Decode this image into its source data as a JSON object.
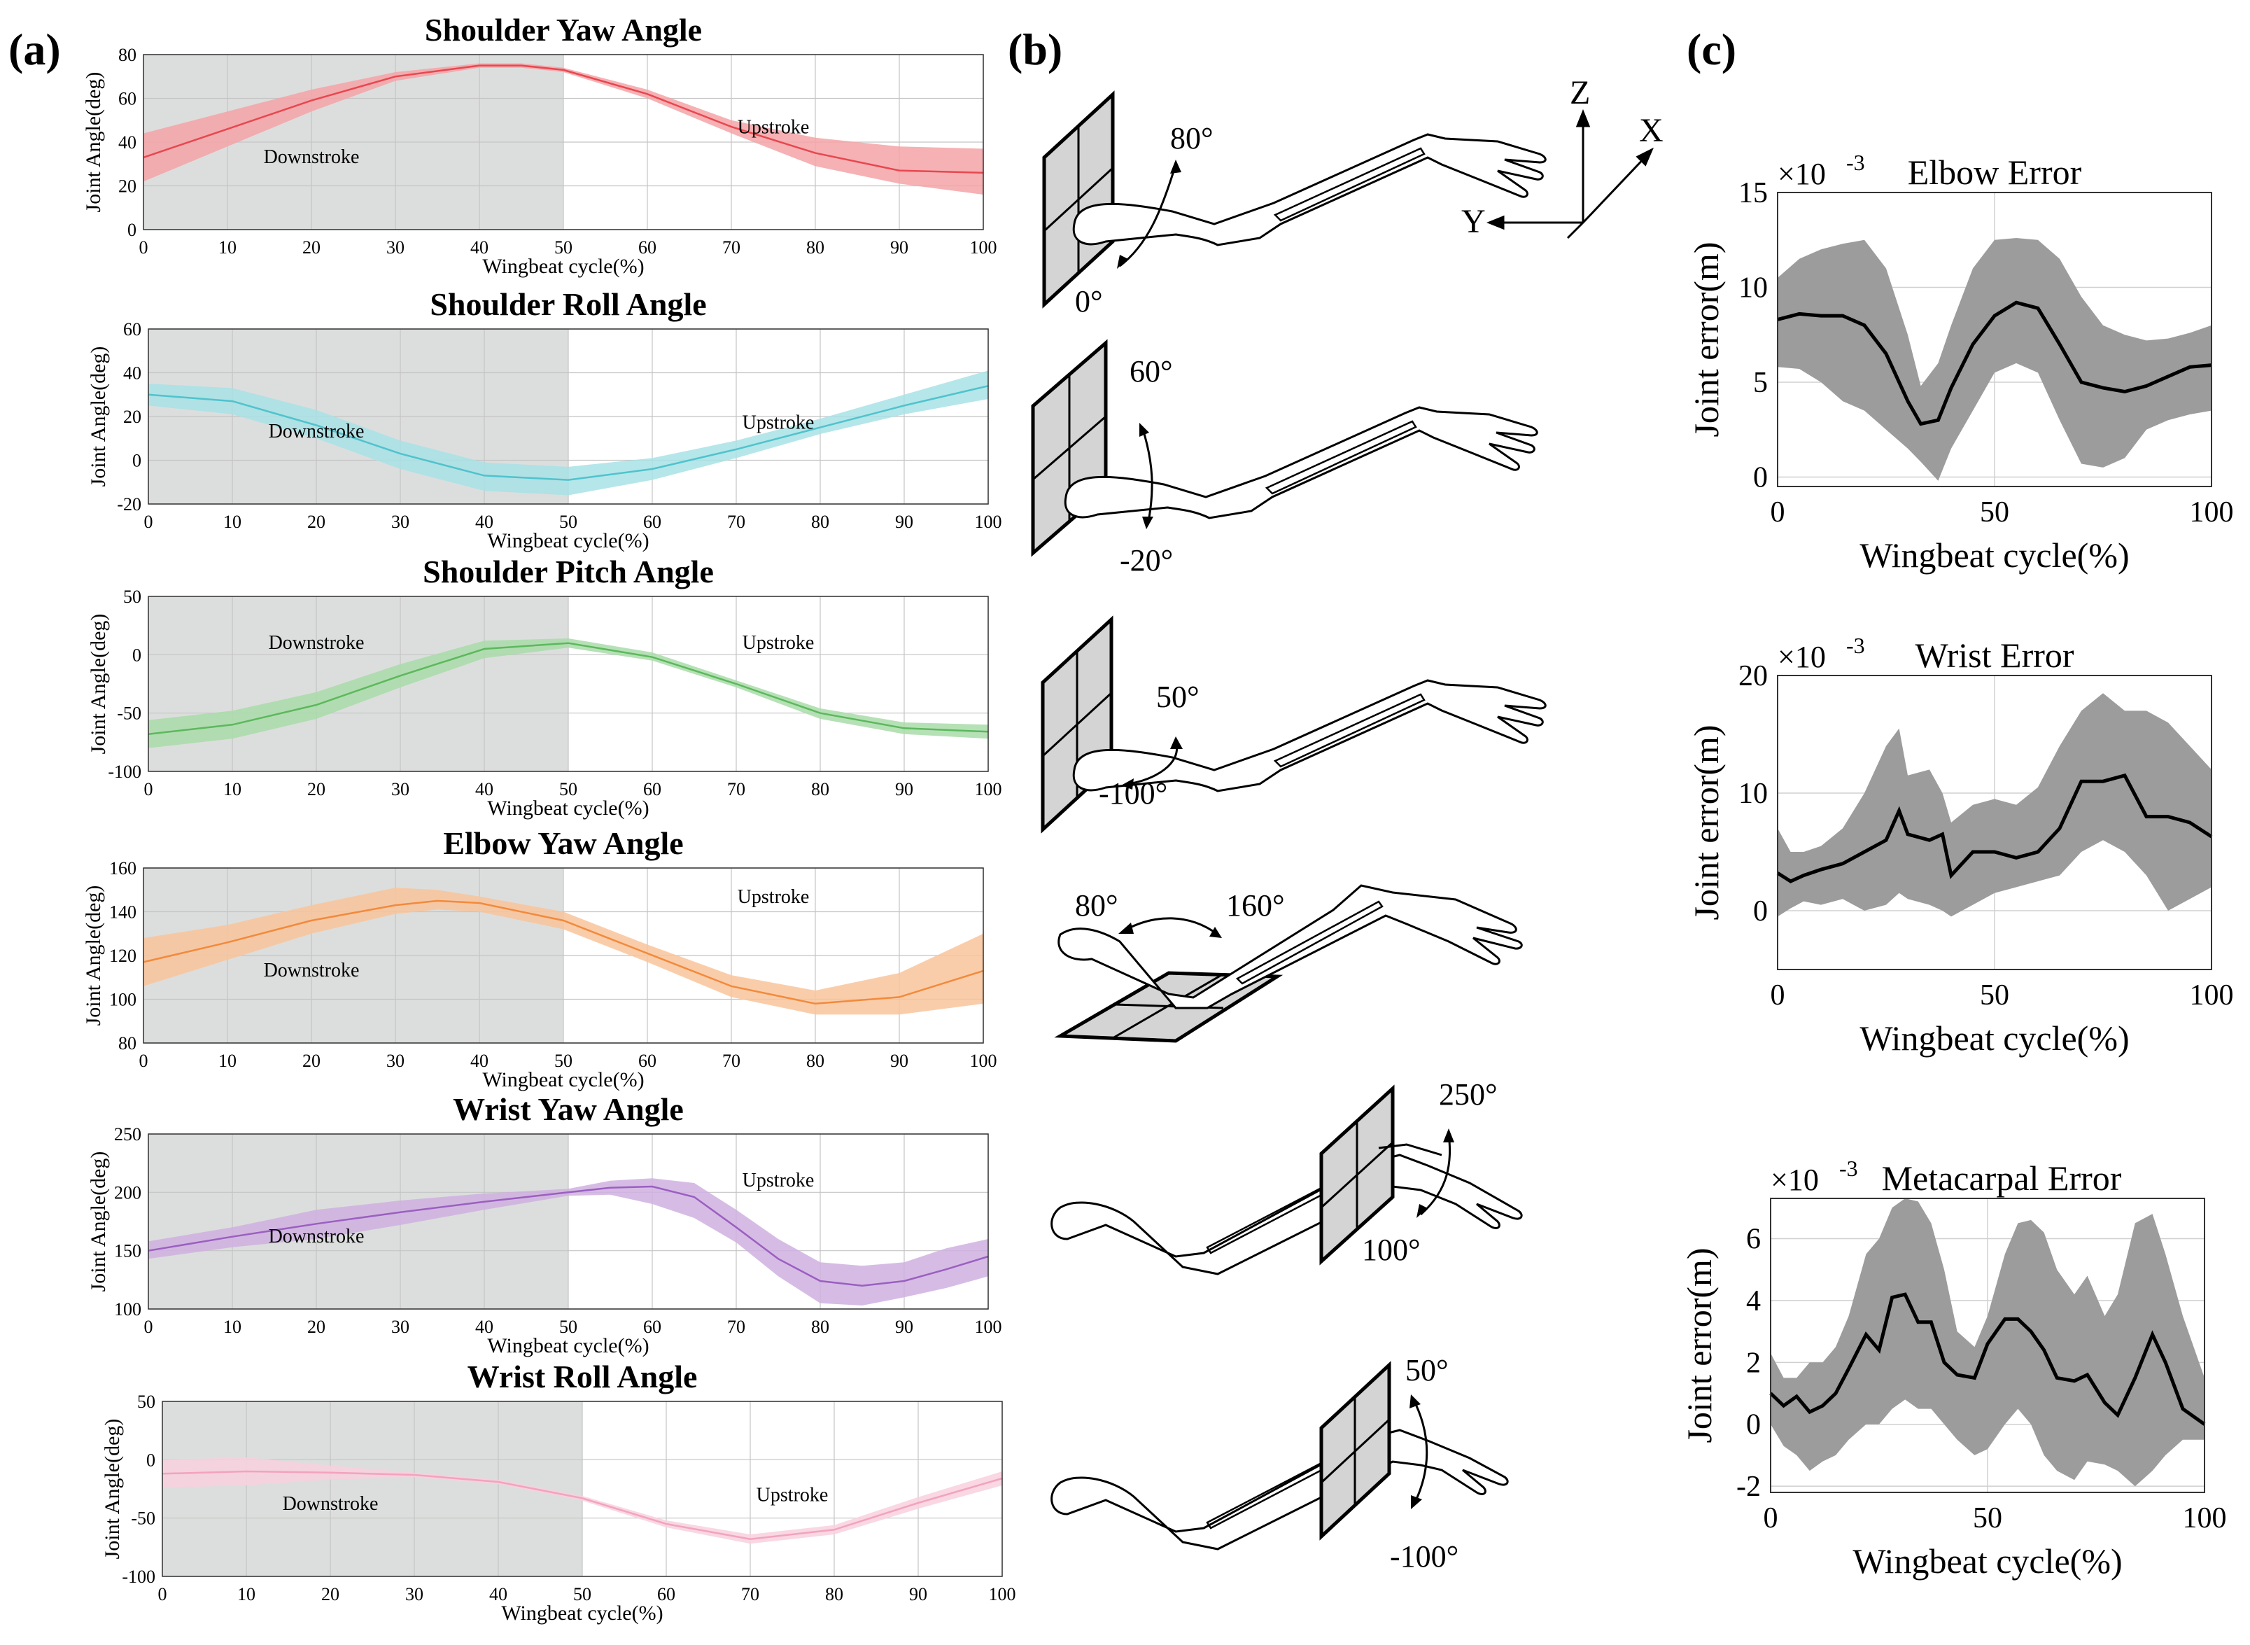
{
  "panel_labels": [
    "(a)",
    "(b)",
    "(c)"
  ],
  "chart_data": [
    {
      "id": "shoulder-yaw",
      "type": "line",
      "title": "Shoulder Yaw Angle",
      "xlabel": "Wingbeat cycle(%)",
      "ylabel": "Joint Angle(deg)",
      "xlim": [
        0,
        100
      ],
      "ylim": [
        0,
        80
      ],
      "yticks": [
        0,
        20,
        40,
        60,
        80
      ],
      "xticks": [
        0,
        10,
        20,
        30,
        40,
        50,
        60,
        70,
        80,
        90,
        100
      ],
      "shade": [
        0,
        50
      ],
      "regions": [
        "Downstroke",
        "Upstroke"
      ],
      "color": "#e8474f",
      "band": "#f4a3a7",
      "x": [
        0,
        10,
        20,
        30,
        40,
        45,
        50,
        60,
        70,
        80,
        90,
        100
      ],
      "mean": [
        33,
        46,
        59,
        70,
        75,
        75,
        73,
        62,
        47,
        35,
        27,
        26
      ],
      "lower": [
        22,
        38,
        54,
        68,
        74,
        74,
        72,
        60,
        44,
        29,
        21,
        16
      ],
      "upper": [
        44,
        54,
        64,
        72,
        76,
        76,
        74,
        64,
        50,
        42,
        38,
        37
      ]
    },
    {
      "id": "shoulder-roll",
      "type": "line",
      "title": "Shoulder Roll Angle",
      "xlabel": "Wingbeat cycle(%)",
      "ylabel": "Joint Angle(deg)",
      "xlim": [
        0,
        100
      ],
      "ylim": [
        -20,
        60
      ],
      "yticks": [
        -20,
        0,
        20,
        40,
        60
      ],
      "xticks": [
        0,
        10,
        20,
        30,
        40,
        50,
        60,
        70,
        80,
        90,
        100
      ],
      "shade": [
        0,
        50
      ],
      "regions": [
        "Downstroke",
        "Upstroke"
      ],
      "color": "#4fc3cc",
      "band": "#a8e2e6",
      "x": [
        0,
        10,
        20,
        30,
        40,
        50,
        60,
        70,
        80,
        90,
        100
      ],
      "mean": [
        30,
        27,
        16,
        3,
        -7,
        -9,
        -4,
        5,
        15,
        25,
        34
      ],
      "lower": [
        25,
        21,
        10,
        -4,
        -14,
        -16,
        -9,
        1,
        12,
        21,
        28
      ],
      "upper": [
        35,
        33,
        23,
        9,
        -1,
        -3,
        1,
        9,
        19,
        30,
        41
      ]
    },
    {
      "id": "shoulder-pitch",
      "type": "line",
      "title": "Shoulder Pitch Angle",
      "xlabel": "Wingbeat cycle(%)",
      "ylabel": "Joint Angle(deg)",
      "xlim": [
        0,
        100
      ],
      "ylim": [
        -100,
        50
      ],
      "yticks": [
        -100,
        -50,
        0,
        50
      ],
      "xticks": [
        0,
        10,
        20,
        30,
        40,
        50,
        60,
        70,
        80,
        90,
        100
      ],
      "shade": [
        0,
        50
      ],
      "regions": [
        "Downstroke",
        "Upstroke"
      ],
      "color": "#5cb85c",
      "band": "#a9dca9",
      "x": [
        0,
        10,
        20,
        30,
        40,
        50,
        60,
        70,
        80,
        90,
        100
      ],
      "mean": [
        -68,
        -60,
        -43,
        -18,
        5,
        10,
        -2,
        -25,
        -50,
        -63,
        -66
      ],
      "lower": [
        -80,
        -72,
        -55,
        -28,
        -3,
        6,
        -5,
        -28,
        -55,
        -68,
        -72
      ],
      "upper": [
        -56,
        -48,
        -32,
        -8,
        12,
        14,
        2,
        -22,
        -46,
        -58,
        -60
      ]
    },
    {
      "id": "elbow-yaw",
      "type": "line",
      "title": "Elbow Yaw Angle",
      "xlabel": "Wingbeat cycle(%)",
      "ylabel": "Joint Angle(deg)",
      "xlim": [
        0,
        100
      ],
      "ylim": [
        80,
        160
      ],
      "yticks": [
        80,
        100,
        120,
        140,
        160
      ],
      "xticks": [
        0,
        10,
        20,
        30,
        40,
        50,
        60,
        70,
        80,
        90,
        100
      ],
      "shade": [
        0,
        50
      ],
      "regions": [
        "Downstroke",
        "Upstroke"
      ],
      "color": "#f28a3c",
      "band": "#f9c49b",
      "x": [
        0,
        10,
        20,
        30,
        35,
        40,
        50,
        60,
        70,
        80,
        90,
        100
      ],
      "mean": [
        117,
        126,
        136,
        143,
        145,
        144,
        136,
        121,
        106,
        98,
        101,
        113
      ],
      "lower": [
        106,
        118,
        130,
        139,
        141,
        140,
        132,
        117,
        101,
        93,
        93,
        98
      ],
      "upper": [
        128,
        134,
        143,
        151,
        150,
        147,
        140,
        125,
        111,
        104,
        112,
        130
      ]
    },
    {
      "id": "wrist-yaw",
      "type": "line",
      "title": "Wrist Yaw Angle",
      "xlabel": "Wingbeat cycle(%)",
      "ylabel": "Joint Angle(deg)",
      "xlim": [
        0,
        100
      ],
      "ylim": [
        100,
        250
      ],
      "yticks": [
        100,
        150,
        200,
        250
      ],
      "xticks": [
        0,
        10,
        20,
        30,
        40,
        50,
        60,
        70,
        80,
        90,
        100
      ],
      "shade": [
        0,
        50
      ],
      "regions": [
        "Downstroke",
        "Upstroke"
      ],
      "color": "#9b5fc0",
      "band": "#cfb0e0",
      "x": [
        0,
        10,
        20,
        30,
        40,
        50,
        55,
        60,
        65,
        70,
        75,
        80,
        85,
        90,
        95,
        100
      ],
      "mean": [
        150,
        162,
        173,
        183,
        192,
        200,
        204,
        205,
        196,
        170,
        143,
        124,
        120,
        124,
        134,
        145
      ],
      "lower": [
        143,
        153,
        160,
        172,
        185,
        197,
        198,
        190,
        178,
        157,
        128,
        105,
        103,
        110,
        118,
        128
      ],
      "upper": [
        158,
        170,
        185,
        193,
        199,
        203,
        210,
        212,
        208,
        185,
        160,
        140,
        137,
        140,
        152,
        160
      ]
    },
    {
      "id": "wrist-roll",
      "type": "line",
      "title": "Wrist Roll Angle",
      "xlabel": "Wingbeat cycle(%)",
      "ylabel": "Joint Angle(deg)",
      "xlim": [
        0,
        100
      ],
      "ylim": [
        -100,
        50
      ],
      "yticks": [
        -100,
        -50,
        0,
        50
      ],
      "xticks": [
        0,
        10,
        20,
        30,
        40,
        50,
        60,
        70,
        80,
        90,
        100
      ],
      "shade": [
        0,
        50
      ],
      "regions": [
        "Downstroke",
        "Upstroke"
      ],
      "color": "#f2a3bd",
      "band": "#f8d0de",
      "x": [
        0,
        10,
        20,
        30,
        40,
        50,
        60,
        70,
        80,
        90,
        100
      ],
      "mean": [
        -12,
        -10,
        -11,
        -13,
        -19,
        -33,
        -55,
        -68,
        -60,
        -37,
        -16
      ],
      "lower": [
        -24,
        -22,
        -17,
        -15,
        -21,
        -35,
        -58,
        -72,
        -64,
        -42,
        -22
      ],
      "upper": [
        0,
        2,
        -5,
        -11,
        -17,
        -31,
        -52,
        -64,
        -56,
        -32,
        -10
      ]
    },
    {
      "id": "elbow-error",
      "type": "area",
      "title": "Elbow Error",
      "exponent": "×10",
      "exponent_power": "-3",
      "xlabel": "Wingbeat cycle(%)",
      "ylabel": "Joint error(m)",
      "xlim": [
        0,
        100
      ],
      "ylim": [
        -0.5,
        15
      ],
      "yticks": [
        0,
        5,
        10,
        15
      ],
      "xticks": [
        0,
        50,
        100
      ],
      "color": "#000000",
      "band": "#9c9c9c",
      "x": [
        0,
        5,
        10,
        15,
        20,
        25,
        30,
        33,
        37,
        40,
        45,
        50,
        55,
        60,
        65,
        70,
        75,
        80,
        85,
        90,
        95,
        100
      ],
      "mean": [
        8.3,
        8.6,
        8.5,
        8.5,
        8.0,
        6.5,
        4.0,
        2.8,
        3.0,
        4.7,
        7.0,
        8.5,
        9.2,
        8.9,
        7.0,
        5.0,
        4.7,
        4.5,
        4.8,
        5.3,
        5.8,
        5.9
      ],
      "lower": [
        5.8,
        5.7,
        5.0,
        4.0,
        3.5,
        2.5,
        1.5,
        0.8,
        -0.2,
        1.5,
        3.5,
        5.5,
        6.0,
        5.5,
        3.0,
        0.7,
        0.5,
        1.0,
        2.5,
        3.0,
        3.3,
        3.5
      ],
      "upper": [
        10.5,
        11.5,
        12.0,
        12.3,
        12.5,
        11.0,
        7.5,
        4.8,
        6.0,
        8.0,
        11.0,
        12.5,
        12.6,
        12.5,
        11.5,
        9.5,
        8.0,
        7.5,
        7.2,
        7.3,
        7.6,
        8.0
      ]
    },
    {
      "id": "wrist-error",
      "type": "area",
      "title": "Wrist Error",
      "exponent": "×10",
      "exponent_power": "-3",
      "xlabel": "Wingbeat cycle(%)",
      "ylabel": "Joint error(m)",
      "xlim": [
        0,
        100
      ],
      "ylim": [
        -5,
        20
      ],
      "yticks": [
        0,
        10,
        20
      ],
      "xticks": [
        0,
        50,
        100
      ],
      "color": "#000000",
      "band": "#9c9c9c",
      "x": [
        0,
        3,
        6,
        10,
        15,
        20,
        25,
        28,
        30,
        35,
        38,
        40,
        45,
        50,
        55,
        60,
        65,
        70,
        75,
        80,
        85,
        90,
        95,
        100
      ],
      "mean": [
        3.2,
        2.5,
        3.0,
        3.5,
        4.0,
        5.0,
        6.0,
        8.5,
        6.5,
        6.0,
        6.5,
        3.0,
        5.0,
        5.0,
        4.5,
        5.0,
        7.0,
        11.0,
        11.0,
        11.5,
        8.0,
        8.0,
        7.5,
        6.3
      ],
      "lower": [
        -0.5,
        0.2,
        0.8,
        0.5,
        1.0,
        0.0,
        0.5,
        1.5,
        1.0,
        0.5,
        0.0,
        -0.5,
        0.5,
        1.5,
        2.0,
        2.5,
        3.0,
        5.0,
        6.0,
        5.0,
        3.0,
        0.0,
        1.0,
        2.0
      ],
      "upper": [
        7.0,
        5.0,
        5.0,
        5.5,
        7.0,
        10.0,
        14.0,
        15.5,
        11.5,
        12.0,
        10.0,
        7.5,
        9.0,
        9.5,
        9.0,
        10.5,
        14.0,
        17.0,
        18.5,
        17.0,
        17.0,
        16.0,
        14.0,
        12.0
      ]
    },
    {
      "id": "metacarpal-error",
      "type": "area",
      "title": "Metacarpal Error",
      "exponent": "×10",
      "exponent_power": "-3",
      "xlabel": "Wingbeat cycle(%)",
      "ylabel": "Joint error(m)",
      "xlim": [
        0,
        100
      ],
      "ylim": [
        -2.2,
        7.3
      ],
      "yticks": [
        -2,
        0,
        2,
        4,
        6
      ],
      "xticks": [
        0,
        50,
        100
      ],
      "color": "#000000",
      "band": "#9c9c9c",
      "x": [
        0,
        3,
        6,
        9,
        12,
        15,
        18,
        22,
        25,
        28,
        31,
        34,
        37,
        40,
        43,
        47,
        50,
        54,
        57,
        60,
        63,
        66,
        70,
        73,
        77,
        80,
        84,
        88,
        91,
        95,
        100
      ],
      "mean": [
        1.0,
        0.6,
        0.9,
        0.4,
        0.6,
        1.0,
        1.8,
        2.9,
        2.4,
        4.1,
        4.2,
        3.3,
        3.3,
        2.0,
        1.6,
        1.5,
        2.6,
        3.4,
        3.4,
        3.0,
        2.4,
        1.5,
        1.4,
        1.6,
        0.7,
        0.3,
        1.5,
        2.9,
        2.0,
        0.5,
        0.0
      ],
      "lower": [
        0.0,
        -0.7,
        -1.0,
        -1.5,
        -1.2,
        -1.0,
        -0.5,
        0.0,
        0.0,
        0.5,
        0.8,
        0.5,
        0.5,
        0.0,
        -0.5,
        -1.0,
        -0.8,
        0.0,
        0.5,
        0.0,
        -1.0,
        -1.5,
        -1.8,
        -1.2,
        -1.3,
        -1.5,
        -2.0,
        -1.5,
        -1.0,
        -0.5,
        -0.5
      ],
      "upper": [
        2.3,
        1.5,
        1.5,
        2.0,
        2.0,
        2.5,
        3.5,
        5.5,
        6.0,
        7.0,
        7.3,
        7.2,
        6.5,
        5.0,
        3.0,
        2.5,
        3.5,
        5.5,
        6.5,
        6.6,
        6.2,
        5.0,
        4.2,
        4.8,
        3.5,
        4.2,
        6.5,
        6.8,
        5.5,
        3.5,
        1.5
      ]
    }
  ],
  "diagram": {
    "axes_labels": [
      "Z",
      "X",
      "Y"
    ],
    "ranges": [
      {
        "max": "80°",
        "min": "0°"
      },
      {
        "max": "60°",
        "min": "-20°"
      },
      {
        "max": "50°",
        "min": "-100°"
      },
      {
        "max": "160°",
        "min": "80°"
      },
      {
        "max": "250°",
        "min": "100°"
      },
      {
        "max": "50°",
        "min": "-100°"
      }
    ]
  }
}
